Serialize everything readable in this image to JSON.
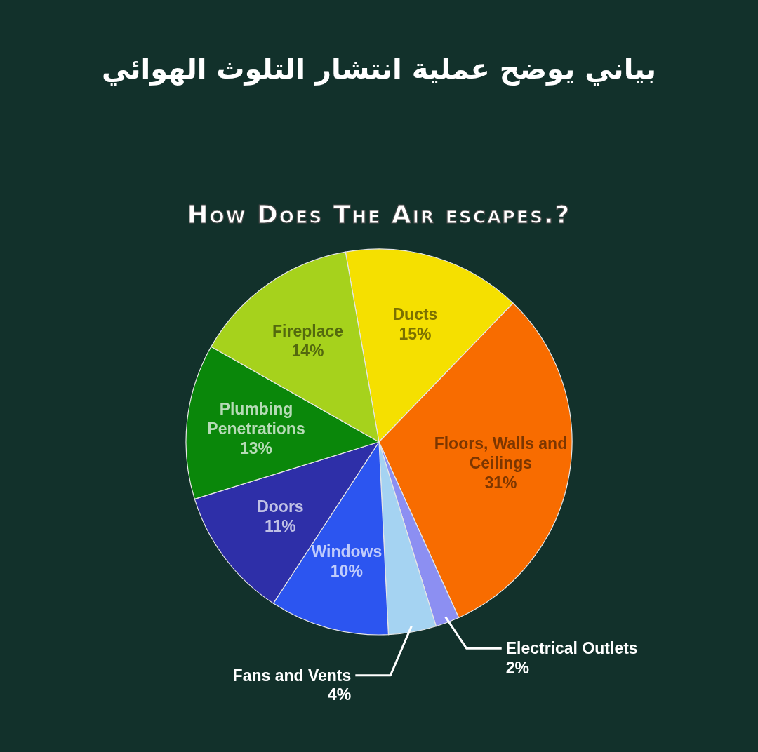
{
  "chart_data": {
    "type": "pie",
    "title": "بياني يوضح عملية انتشار التلوث الهوائي",
    "subtitle": "How Does The Air escapes.?",
    "categories": [
      "Ducts",
      "Floors, Walls and Ceilings",
      "Electrical Outlets",
      "Fans and Vents",
      "Windows",
      "Doors",
      "Plumbing Penetrations",
      "Fireplace"
    ],
    "values": [
      15,
      31,
      2,
      4,
      10,
      11,
      13,
      14
    ],
    "colors": [
      "#f5e000",
      "#f86c00",
      "#8c8ff2",
      "#a5d3f2",
      "#2c55f0",
      "#2e2fa8",
      "#0a870a",
      "#a6d21c"
    ],
    "value_labels": [
      "15%",
      "31%",
      "2%",
      "4%",
      "10%",
      "11%",
      "13%",
      "14%"
    ]
  }
}
